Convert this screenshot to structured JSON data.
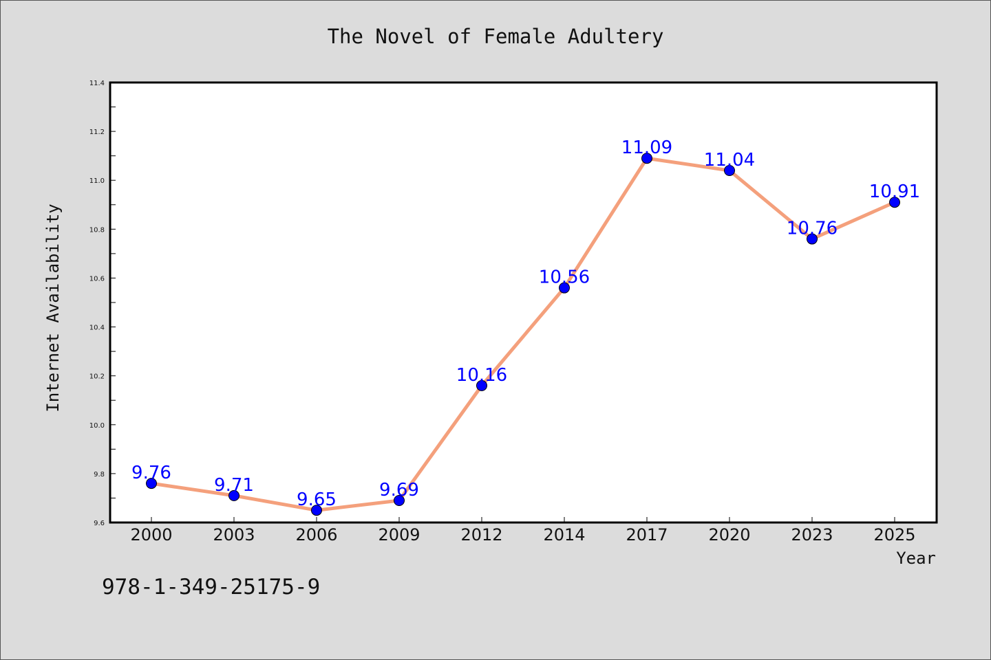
{
  "chart_data": {
    "type": "line",
    "title": "The Novel of Female Adultery",
    "xlabel": "Year",
    "ylabel": "Internet Availability",
    "categories": [
      "2000",
      "2003",
      "2006",
      "2009",
      "2012",
      "2014",
      "2017",
      "2020",
      "2023",
      "2025"
    ],
    "series": [
      {
        "values": [
          9.76,
          9.71,
          9.65,
          9.69,
          10.16,
          10.56,
          11.09,
          11.04,
          10.76,
          10.91
        ]
      }
    ],
    "data_labels": [
      "9.76",
      "9.71",
      "9.65",
      "9.69",
      "10.16",
      "10.56",
      "11.09",
      "11.04",
      "10.76",
      "10.91"
    ],
    "ylim": [
      9.6,
      11.4
    ],
    "yticks": [
      "9.6",
      "9.8",
      "10.0",
      "10.2",
      "10.4",
      "10.6",
      "10.8",
      "11.0",
      "11.2",
      "11.4"
    ],
    "grid": false,
    "legend": false,
    "colors": {
      "line": "#f4a07c",
      "marker": "#0000ff",
      "label": "#0000ff",
      "background": "#dcdcdc",
      "plot_background": "#ffffff"
    }
  },
  "footer_code": "978-1-349-25175-9"
}
